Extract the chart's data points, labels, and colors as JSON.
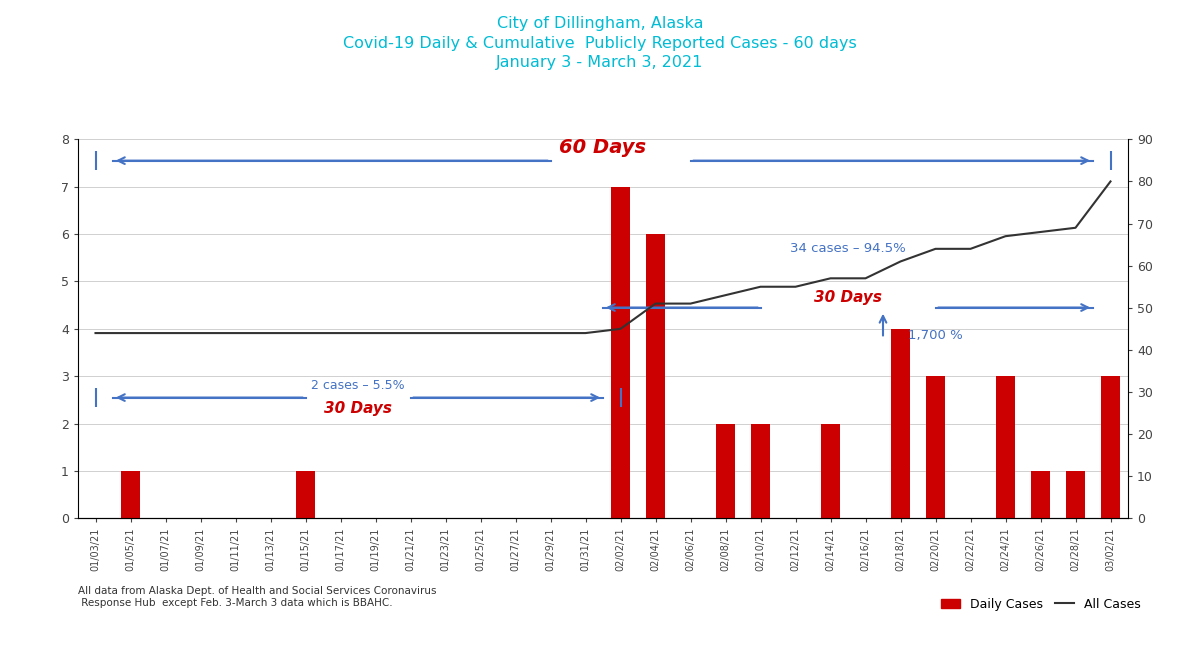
{
  "title_line1": "City of Dillingham, Alaska",
  "title_line2": "Covid-19 Daily & Cumulative  Publicly Reported Cases - 60 days",
  "title_line3": "January 3 - March 3, 2021",
  "title_color": "#00bcd4",
  "dates": [
    "01/03/21",
    "01/05/21",
    "01/07/21",
    "01/09/21",
    "01/11/21",
    "01/13/21",
    "01/15/21",
    "01/17/21",
    "01/19/21",
    "01/21/21",
    "01/23/21",
    "01/25/21",
    "01/27/21",
    "01/29/21",
    "01/31/21",
    "02/02/21",
    "02/04/21",
    "02/06/21",
    "02/08/21",
    "02/10/21",
    "02/12/21",
    "02/14/21",
    "02/16/21",
    "02/18/21",
    "02/20/21",
    "02/22/21",
    "02/24/21",
    "02/26/21",
    "02/28/21",
    "03/02/21"
  ],
  "daily_cases": [
    0,
    1,
    0,
    0,
    0,
    0,
    1,
    0,
    0,
    0,
    0,
    0,
    0,
    0,
    0,
    7,
    6,
    0,
    2,
    2,
    0,
    2,
    0,
    4,
    3,
    0,
    3,
    1,
    1,
    3
  ],
  "cumulative_cases": [
    44,
    44,
    44,
    44,
    44,
    44,
    44,
    44,
    44,
    44,
    44,
    44,
    44,
    44,
    44,
    45,
    51,
    51,
    53,
    55,
    55,
    57,
    57,
    61,
    64,
    64,
    67,
    68,
    69,
    80
  ],
  "bar_color": "#cc0000",
  "line_color": "#333333",
  "left_ylim": [
    0,
    8
  ],
  "right_ylim": [
    0,
    90
  ],
  "left_yticks": [
    0,
    1,
    2,
    3,
    4,
    5,
    6,
    7,
    8
  ],
  "right_yticks": [
    0,
    10,
    20,
    30,
    40,
    50,
    60,
    70,
    80,
    90
  ],
  "annotation_60days_text": "60 Days",
  "annotation_30days_left_text": "30 Days",
  "annotation_30days_right_text": "30 Days",
  "annotation_2cases": "2 cases – 5.5%",
  "annotation_34cases": "34 cases – 94.5%",
  "annotation_1700pct": "1,700 %",
  "annotation_color_red": "#cc0000",
  "annotation_color_blue": "#4472c4",
  "footnote": "All data from Alaska Dept. of Health and Social Services Coronavirus\n Response Hub  except Feb. 3-March 3 data which is BBAHC.",
  "legend_daily": "Daily Cases",
  "legend_all": "All Cases",
  "background_color": "#ffffff",
  "grid_color": "#d0d0d0"
}
